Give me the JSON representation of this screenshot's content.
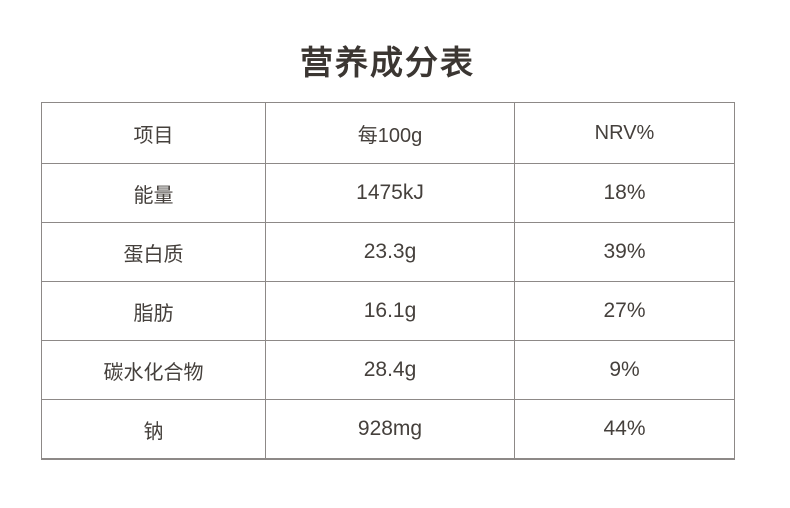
{
  "page": {
    "title": "营养成分表"
  },
  "colors": {
    "background": "#ffffff",
    "text": "#45403c",
    "title_text": "#3b3632",
    "border": "#8d8987"
  },
  "table": {
    "headers": [
      "项目",
      "每100g",
      "NRV%"
    ],
    "rows": [
      [
        "能量",
        "1475kJ",
        "18%"
      ],
      [
        "蛋白质",
        "23.3g",
        "39%"
      ],
      [
        "脂肪",
        "16.1g",
        "27%"
      ],
      [
        "碳水化合物",
        "28.4g",
        "9%"
      ],
      [
        "钠",
        "928mg",
        "44%"
      ]
    ]
  },
  "chart_data": {
    "type": "table",
    "title": "营养成分表",
    "columns": [
      "项目",
      "每100g",
      "NRV%"
    ],
    "rows": [
      {
        "项目": "能量",
        "每100g": "1475kJ",
        "NRV%": "18%"
      },
      {
        "项目": "蛋白质",
        "每100g": "23.3g",
        "NRV%": "39%"
      },
      {
        "项目": "脂肪",
        "每100g": "16.1g",
        "NRV%": "27%"
      },
      {
        "项目": "碳水化合物",
        "每100g": "28.4g",
        "NRV%": "9%"
      },
      {
        "项目": "钠",
        "每100g": "928mg",
        "NRV%": "44%"
      }
    ]
  }
}
